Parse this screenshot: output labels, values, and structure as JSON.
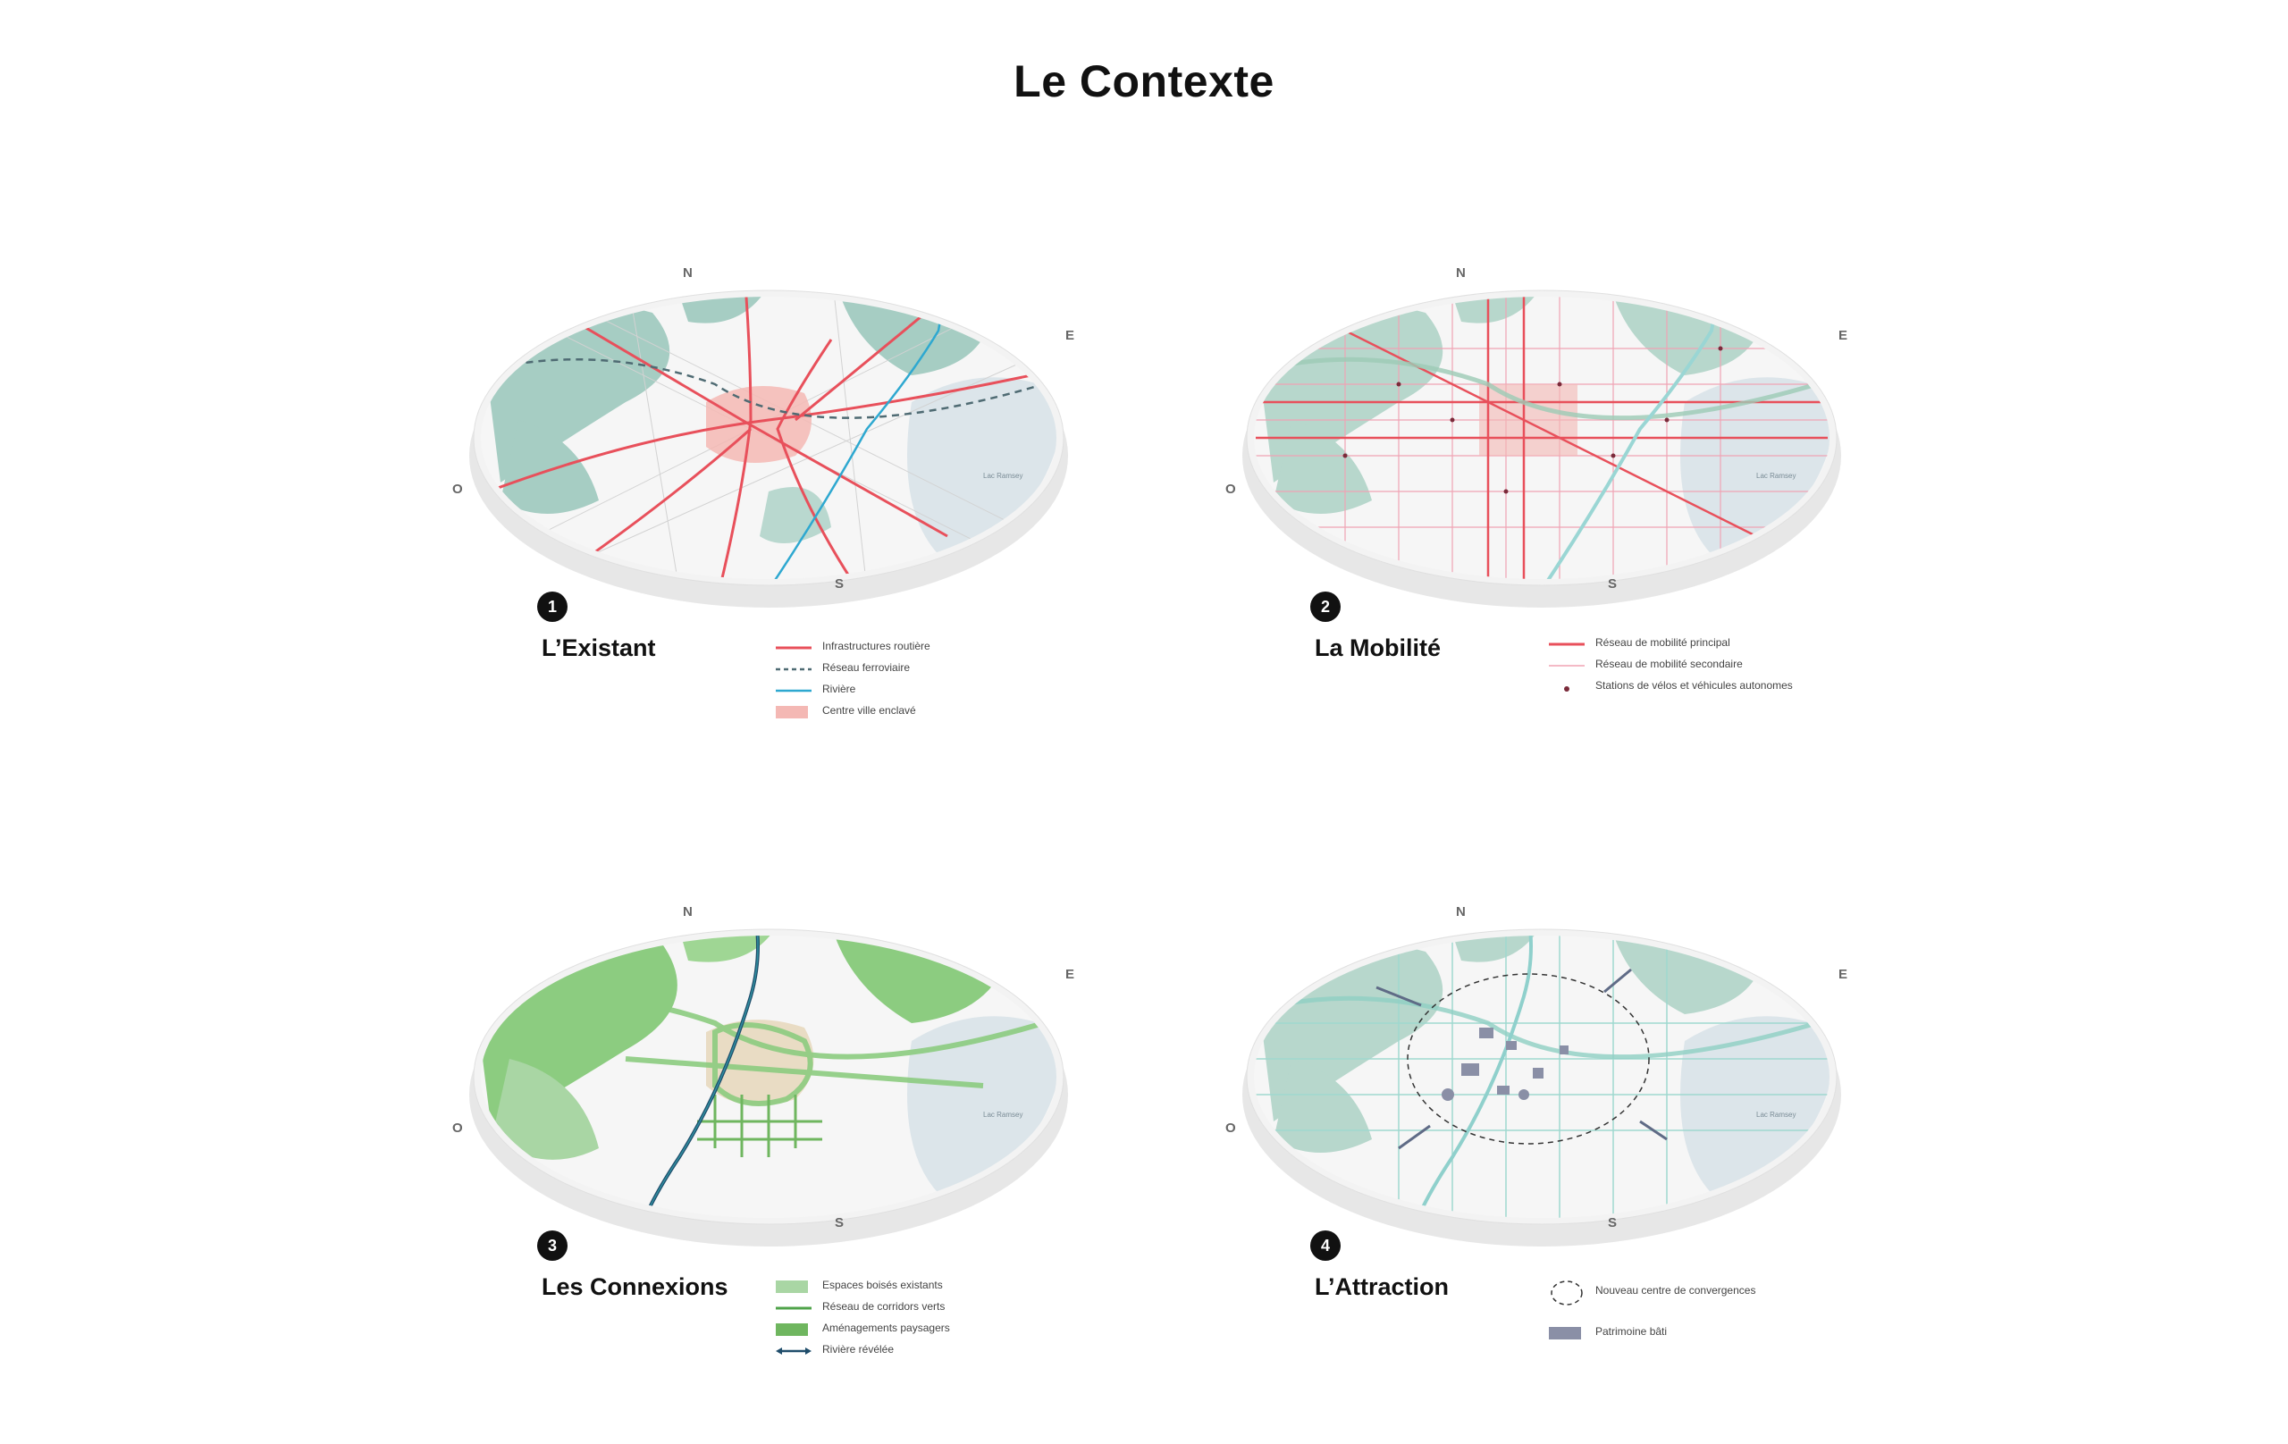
{
  "page": {
    "title": "Le Contexte"
  },
  "compass": {
    "n": "N",
    "e": "E",
    "s": "S",
    "o": "O"
  },
  "lake_label": "Lac Ramsey",
  "panels": [
    {
      "number": "1",
      "title": "L’Existant",
      "legend": [
        {
          "label": "Infrastructures routière",
          "swatch": "line",
          "color": "#e8505b"
        },
        {
          "label": "Réseau ferroviaire",
          "swatch": "dashed",
          "color": "#4f6b73"
        },
        {
          "label": "Rivière",
          "swatch": "line",
          "color": "#2ea8d0"
        },
        {
          "label": "Centre ville enclavé",
          "swatch": "fill",
          "color": "#f4b8b4"
        }
      ]
    },
    {
      "number": "2",
      "title": "La Mobilité",
      "legend": [
        {
          "label": "Réseau de mobilité principal",
          "swatch": "line",
          "color": "#e8505b"
        },
        {
          "label": "Réseau de mobilité secondaire",
          "swatch": "thin",
          "color": "#f0a3b4"
        },
        {
          "label": "Stations de vélos et véhicules autonomes",
          "swatch": "dot",
          "color": "#7a2a3a"
        }
      ]
    },
    {
      "number": "3",
      "title": "Les  Connexions",
      "legend": [
        {
          "label": "Espaces boisés existants",
          "swatch": "fill",
          "color": "#a9d6a4"
        },
        {
          "label": "Réseau de corridors verts",
          "swatch": "line",
          "color": "#4fa34a"
        },
        {
          "label": "Aménagements paysagers",
          "swatch": "fill",
          "color": "#6fb65f"
        },
        {
          "label": "Rivière révélée",
          "swatch": "arrow",
          "color": "#1f4d6b"
        }
      ]
    },
    {
      "number": "4",
      "title": "L’Attraction",
      "legend": [
        {
          "label": "Nouveau centre de convergences",
          "swatch": "circle",
          "color": "#333333"
        },
        {
          "label": "Patrimoine bâti",
          "swatch": "fill",
          "color": "#8a8fa6"
        }
      ]
    }
  ]
}
